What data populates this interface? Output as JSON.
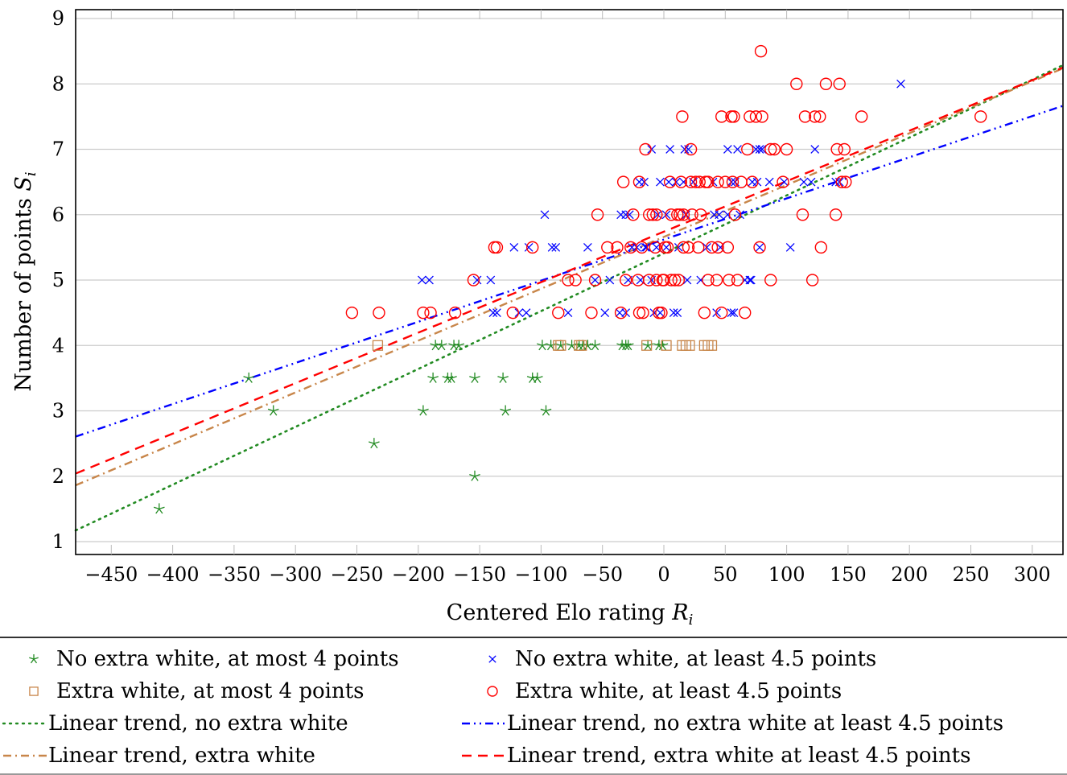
{
  "chart_data": {
    "type": "scatter",
    "title": "",
    "xlabel": "Centered Elo rating R_i",
    "ylabel": "Number of points S_i",
    "xlabel_parts": {
      "text": "Centered Elo rating ",
      "var": "R",
      "sub": "i"
    },
    "ylabel_parts": {
      "text": "Number of points ",
      "var": "S",
      "sub": "i"
    },
    "xlim": [
      -480,
      325
    ],
    "ylim": [
      0.8,
      9.2
    ],
    "xticks": [
      -450,
      -400,
      -350,
      -300,
      -250,
      -200,
      -150,
      -100,
      -50,
      0,
      50,
      100,
      150,
      200,
      250,
      300
    ],
    "xtick_labels": [
      "−450",
      "−400",
      "−350",
      "−300",
      "−250",
      "−200",
      "−150",
      "−100",
      "−50",
      "0",
      "50",
      "100",
      "150",
      "200",
      "250",
      "300"
    ],
    "yticks": [
      1,
      2,
      3,
      4,
      5,
      6,
      7,
      8,
      9
    ],
    "ytick_labels": [
      "1",
      "2",
      "3",
      "4",
      "5",
      "6",
      "7",
      "8",
      "9"
    ],
    "grid": "horizontal",
    "legend_position": "bottom",
    "series": [
      {
        "name": "No extra white, at most 4 points",
        "kind": "scatter",
        "marker": "star",
        "color": "#228b22",
        "points": [
          [
            -411,
            1.5
          ],
          [
            -338,
            3.5
          ],
          [
            -318,
            3.0
          ],
          [
            -236,
            2.5
          ],
          [
            -196,
            3.0
          ],
          [
            -188,
            3.5
          ],
          [
            -186,
            4.0
          ],
          [
            -181,
            4.0
          ],
          [
            -176,
            3.5
          ],
          [
            -173,
            3.5
          ],
          [
            -171,
            4.0
          ],
          [
            -167,
            4.0
          ],
          [
            -154,
            2.0
          ],
          [
            -154,
            3.5
          ],
          [
            -131,
            3.5
          ],
          [
            -129,
            3.0
          ],
          [
            -107,
            3.5
          ],
          [
            -103,
            3.5
          ],
          [
            -99,
            4.0
          ],
          [
            -96,
            3.0
          ],
          [
            -92,
            4.0
          ],
          [
            -84,
            4.0
          ],
          [
            -75,
            4.0
          ],
          [
            -69,
            4.0
          ],
          [
            -66,
            4.0
          ],
          [
            -62,
            4.0
          ],
          [
            -56,
            4.0
          ],
          [
            -34,
            4.0
          ],
          [
            -31,
            4.0
          ],
          [
            -29,
            4.0
          ],
          [
            -13,
            4.0
          ],
          [
            -4,
            4.0
          ],
          [
            -1,
            4.0
          ]
        ]
      },
      {
        "name": "Extra white, at most 4 points",
        "kind": "scatter",
        "marker": "square",
        "color": "#c8864a",
        "points": [
          [
            -233,
            4.0
          ],
          [
            -86,
            4.0
          ],
          [
            -84,
            4.0
          ],
          [
            -69,
            4.0
          ],
          [
            -67,
            4.0
          ],
          [
            -14,
            4.0
          ],
          [
            2,
            4.0
          ],
          [
            15,
            4.0
          ],
          [
            18,
            4.0
          ],
          [
            21,
            4.0
          ],
          [
            33,
            4.0
          ],
          [
            36,
            4.0
          ],
          [
            39,
            4.0
          ]
        ]
      },
      {
        "name": "No extra white, at least 4.5 points",
        "kind": "scatter",
        "marker": "cross",
        "color": "#0000ff",
        "points": [
          [
            -197,
            5.0
          ],
          [
            -191,
            5.0
          ],
          [
            -152,
            5.0
          ],
          [
            -139,
            4.5
          ],
          [
            -136,
            4.5
          ],
          [
            -141,
            5.0
          ],
          [
            -118,
            4.5
          ],
          [
            -112,
            4.5
          ],
          [
            -110,
            5.5
          ],
          [
            -122,
            5.5
          ],
          [
            -97,
            6.0
          ],
          [
            -91,
            5.5
          ],
          [
            -88,
            5.5
          ],
          [
            -78,
            4.5
          ],
          [
            -62,
            5.5
          ],
          [
            -56,
            5.0
          ],
          [
            -48,
            4.5
          ],
          [
            -44,
            5.0
          ],
          [
            -36,
            4.5
          ],
          [
            -31,
            4.5
          ],
          [
            -29,
            5.0
          ],
          [
            -26,
            5.5
          ],
          [
            -19,
            5.0
          ],
          [
            -14,
            5.5
          ],
          [
            -10,
            5.0
          ],
          [
            -8,
            4.5
          ],
          [
            -6,
            5.5
          ],
          [
            -3,
            4.5
          ],
          [
            2,
            5.5
          ],
          [
            8,
            4.5
          ],
          [
            11,
            4.5
          ],
          [
            19,
            5.0
          ],
          [
            30,
            5.0
          ],
          [
            43,
            4.5
          ],
          [
            46,
            5.5
          ],
          [
            55,
            4.5
          ],
          [
            57,
            4.5
          ],
          [
            70,
            5.0
          ],
          [
            -31,
            6.0
          ],
          [
            -28,
            6.0
          ],
          [
            -22,
            5.5
          ],
          [
            -5,
            6.0
          ],
          [
            2,
            6.0
          ],
          [
            18,
            6.0
          ],
          [
            41,
            6.0
          ],
          [
            45,
            6.0
          ],
          [
            52,
            6.0
          ],
          [
            62,
            6.0
          ],
          [
            -20,
            6.5
          ],
          [
            -16,
            6.5
          ],
          [
            -3,
            6.5
          ],
          [
            4,
            6.5
          ],
          [
            10,
            6.5
          ],
          [
            16,
            6.5
          ],
          [
            24,
            6.5
          ],
          [
            40,
            6.5
          ],
          [
            55,
            6.5
          ],
          [
            58,
            6.5
          ],
          [
            72,
            6.5
          ],
          [
            76,
            6.5
          ],
          [
            86,
            6.5
          ],
          [
            98,
            6.5
          ],
          [
            114,
            6.5
          ],
          [
            120,
            6.5
          ],
          [
            140,
            6.5
          ],
          [
            143,
            6.5
          ],
          [
            -10,
            7.0
          ],
          [
            5,
            7.0
          ],
          [
            17,
            7.0
          ],
          [
            20,
            7.0
          ],
          [
            52,
            7.0
          ],
          [
            60,
            7.0
          ],
          [
            75,
            7.0
          ],
          [
            78,
            7.0
          ],
          [
            80,
            7.0
          ],
          [
            123,
            7.0
          ],
          [
            193,
            8.0
          ],
          [
            78,
            5.5
          ],
          [
            103,
            5.5
          ],
          [
            -15,
            5.5
          ],
          [
            35,
            5.5
          ],
          [
            66,
            5.0
          ],
          [
            71,
            5.0
          ],
          [
            -35,
            6.0
          ],
          [
            12,
            5.5
          ]
        ]
      },
      {
        "name": "Extra white, at least 4.5 points",
        "kind": "scatter",
        "marker": "circle",
        "color": "#ff0000",
        "points": [
          [
            -254,
            4.5
          ],
          [
            -232,
            4.5
          ],
          [
            -196,
            4.5
          ],
          [
            -190,
            4.5
          ],
          [
            -170,
            4.5
          ],
          [
            -155,
            5.0
          ],
          [
            -138,
            5.5
          ],
          [
            -136,
            5.5
          ],
          [
            -123,
            4.5
          ],
          [
            -107,
            5.5
          ],
          [
            -86,
            4.5
          ],
          [
            -78,
            5.0
          ],
          [
            -72,
            5.0
          ],
          [
            -59,
            4.5
          ],
          [
            -56,
            5.0
          ],
          [
            -54,
            6.0
          ],
          [
            -46,
            5.5
          ],
          [
            -35,
            4.5
          ],
          [
            -31,
            5.0
          ],
          [
            -25,
            6.0
          ],
          [
            -33,
            6.5
          ],
          [
            -20,
            4.5
          ],
          [
            -17,
            4.5
          ],
          [
            -21,
            5.0
          ],
          [
            -18,
            5.5
          ],
          [
            -12,
            5.0
          ],
          [
            -6,
            5.0
          ],
          [
            -9,
            6.0
          ],
          [
            -4,
            4.5
          ],
          [
            -2,
            4.5
          ],
          [
            0,
            5.0
          ],
          [
            3,
            5.5
          ],
          [
            6,
            5.0
          ],
          [
            9,
            5.0
          ],
          [
            11,
            6.0
          ],
          [
            13,
            6.0
          ],
          [
            16,
            5.5
          ],
          [
            20,
            5.5
          ],
          [
            23,
            6.0
          ],
          [
            26,
            6.5
          ],
          [
            30,
            6.0
          ],
          [
            34,
            6.5
          ],
          [
            33,
            4.5
          ],
          [
            39,
            5.5
          ],
          [
            47,
            4.5
          ],
          [
            44,
            6.5
          ],
          [
            50,
            6.5
          ],
          [
            53,
            5.0
          ],
          [
            56,
            6.5
          ],
          [
            60,
            5.0
          ],
          [
            58,
            6.0
          ],
          [
            63,
            6.5
          ],
          [
            66,
            4.5
          ],
          [
            68,
            7.0
          ],
          [
            72,
            6.5
          ],
          [
            78,
            5.5
          ],
          [
            87,
            5.0
          ],
          [
            87,
            7.0
          ],
          [
            90,
            7.0
          ],
          [
            97,
            6.5
          ],
          [
            100,
            7.0
          ],
          [
            113,
            6.0
          ],
          [
            121,
            5.0
          ],
          [
            128,
            5.5
          ],
          [
            140,
            6.0
          ],
          [
            -15,
            7.0
          ],
          [
            -20,
            6.5
          ],
          [
            5,
            6.5
          ],
          [
            14,
            6.5
          ],
          [
            22,
            6.5
          ],
          [
            29,
            6.5
          ],
          [
            36,
            6.5
          ],
          [
            47,
            7.5
          ],
          [
            55,
            7.5
          ],
          [
            57,
            7.5
          ],
          [
            70,
            7.5
          ],
          [
            75,
            7.5
          ],
          [
            80,
            7.5
          ],
          [
            15,
            7.5
          ],
          [
            22,
            7.0
          ],
          [
            -12,
            6.0
          ],
          [
            -6,
            6.0
          ],
          [
            6,
            6.0
          ],
          [
            16,
            6.0
          ],
          [
            28,
            5.5
          ],
          [
            44,
            5.5
          ],
          [
            52,
            5.5
          ],
          [
            1,
            5.5
          ],
          [
            -7,
            5.5
          ],
          [
            -27,
            5.5
          ],
          [
            79,
            8.5
          ],
          [
            108,
            8.0
          ],
          [
            132,
            8.0
          ],
          [
            143,
            8.0
          ],
          [
            115,
            7.5
          ],
          [
            123,
            7.5
          ],
          [
            127,
            7.5
          ],
          [
            141,
            7.0
          ],
          [
            147,
            7.0
          ],
          [
            161,
            7.5
          ],
          [
            148,
            6.5
          ],
          [
            258,
            7.5
          ],
          [
            145,
            6.5
          ],
          [
            36,
            5.0
          ],
          [
            43,
            5.0
          ],
          [
            -38,
            5.5
          ],
          [
            12,
            5.0
          ],
          [
            -1,
            5.0
          ]
        ]
      },
      {
        "name": "Linear trend, no extra white",
        "kind": "line",
        "style": "dotted",
        "color": "#228b22",
        "intercept": 5.41,
        "slope": 0.008849
      },
      {
        "name": "Linear trend, no extra white at least 4.5 points",
        "kind": "line",
        "style": "dashdotdot",
        "color": "#0000ff",
        "intercept": 5.62,
        "slope": 0.006291
      },
      {
        "name": "Linear trend, extra white",
        "kind": "line",
        "style": "dashdot",
        "color": "#c8864a",
        "intercept": 5.66,
        "slope": 0.00793
      },
      {
        "name": "Linear trend, extra white at least 4.5 points",
        "kind": "line",
        "style": "dashed",
        "color": "#ff0000",
        "intercept": 5.74,
        "slope": 0.007722
      }
    ]
  },
  "legend": {
    "items": [
      {
        "label": "No extra white, at most 4 points",
        "symbol": "star",
        "color": "#228b22"
      },
      {
        "label": "No extra white, at least 4.5 points",
        "symbol": "cross",
        "color": "#0000ff"
      },
      {
        "label": "Extra white, at most 4 points",
        "symbol": "square",
        "color": "#c8864a"
      },
      {
        "label": "Extra white, at least 4.5 points",
        "symbol": "circle",
        "color": "#ff0000"
      },
      {
        "label": "Linear trend, no extra white",
        "symbol": "dotted",
        "color": "#228b22"
      },
      {
        "label": "Linear trend, no extra white at least 4.5 points",
        "symbol": "dashdotdot",
        "color": "#0000ff"
      },
      {
        "label": "Linear trend, extra white",
        "symbol": "dashdot",
        "color": "#c8864a"
      },
      {
        "label": "Linear trend, extra white at least 4.5 points",
        "symbol": "dashed",
        "color": "#ff0000"
      }
    ]
  }
}
